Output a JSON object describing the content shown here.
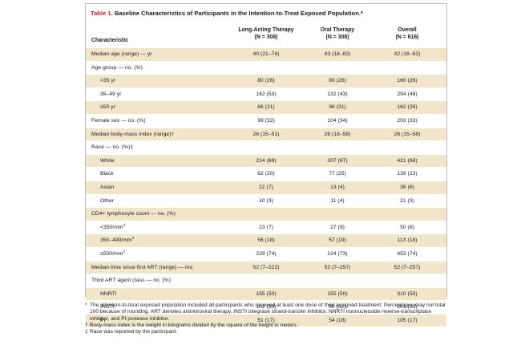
{
  "table": {
    "label": "Table 1.",
    "caption": " Baseline Characteristics of Participants in the Intention-to-Treat Exposed Population.*",
    "columns": {
      "characteristic": "Characteristic",
      "long_acting": {
        "name": "Long-Acting Therapy",
        "n": "(N = 308)"
      },
      "oral": {
        "name": "Oral Therapy",
        "n": "(N = 308)"
      },
      "overall": {
        "name": "Overall",
        "n": "(N = 616)"
      }
    },
    "rows": [
      {
        "label": "Median age (range) — yr",
        "sub": false,
        "long_acting": "40 (21–74)",
        "oral": "43 (18–82)",
        "overall": "42 (18–82)"
      },
      {
        "label": "Age group — no. (%)",
        "sub": false,
        "long_acting": "",
        "oral": "",
        "overall": ""
      },
      {
        "label": "<35 yr",
        "sub": true,
        "long_acting": "80 (26)",
        "oral": "80 (26)",
        "overall": "160 (26)"
      },
      {
        "label": "35–49 yr",
        "sub": true,
        "long_acting": "162 (53)",
        "oral": "132 (43)",
        "overall": "294 (48)"
      },
      {
        "label": "≥50 yr",
        "sub": true,
        "long_acting": "66 (21)",
        "oral": "96 (31)",
        "overall": "162 (26)"
      },
      {
        "label": "Female sex — no. (%)",
        "sub": false,
        "long_acting": "99 (32)",
        "oral": "104 (34)",
        "overall": "203 (33)"
      },
      {
        "label": "Median body-mass index (range)†",
        "sub": false,
        "long_acting": "26 (15–51)",
        "oral": "26 (18–58)",
        "overall": "26 (15–58)"
      },
      {
        "label": "Race — no. (%)‡",
        "sub": false,
        "long_acting": "",
        "oral": "",
        "overall": ""
      },
      {
        "label": "White",
        "sub": true,
        "long_acting": "214 (69)",
        "oral": "207 (67)",
        "overall": "421 (68)"
      },
      {
        "label": "Black",
        "sub": true,
        "long_acting": "62 (20)",
        "oral": "77 (25)",
        "overall": "139 (23)"
      },
      {
        "label": "Asian",
        "sub": true,
        "long_acting": "22 (7)",
        "oral": "13 (4)",
        "overall": "35 (6)"
      },
      {
        "label": "Other",
        "sub": true,
        "long_acting": "10 (3)",
        "oral": "11 (4)",
        "overall": "21 (3)"
      },
      {
        "label": "CD4+ lymphocyte count — no. (%)",
        "sub": false,
        "long_acting": "",
        "oral": "",
        "overall": ""
      },
      {
        "label": "<350/mm",
        "sup": "3",
        "sub": true,
        "long_acting": "23 (7)",
        "oral": "27 (9)",
        "overall": "50 (8)"
      },
      {
        "label": "350–499/mm",
        "sup": "3",
        "sub": true,
        "long_acting": "56 (18)",
        "oral": "57 (19)",
        "overall": "113 (18)"
      },
      {
        "label": "≥500/mm",
        "sup": "3",
        "sub": true,
        "long_acting": "229 (74)",
        "oral": "224 (73)",
        "overall": "453 (74)"
      },
      {
        "label": "Median time since first ART (range) — mo",
        "sub": false,
        "long_acting": "52 (7–222)",
        "oral": "52 (7–257)",
        "overall": "52 (7–257)"
      },
      {
        "label": "Third ART agent class — no. (%)",
        "sub": false,
        "long_acting": "",
        "oral": "",
        "overall": ""
      },
      {
        "label": "NNRTI",
        "sub": true,
        "long_acting": "155 (50)",
        "oral": "155 (50)",
        "overall": "310 (50)"
      },
      {
        "label": "INSTI",
        "sub": true,
        "long_acting": "102 (33)",
        "oral": "99 (32)",
        "overall": "201 (33)"
      },
      {
        "label": "PI",
        "sub": true,
        "long_acting": "51 (17)",
        "oral": "54 (18)",
        "overall": "105 (17)"
      }
    ]
  },
  "footnotes": [
    {
      "mark": "*",
      "text": "The intention-to-treat exposed population included all participants who received at least one dose of their assigned treatment. Percentages may not total 100 because of rounding. ART denotes antiretroviral therapy, INSTI integrase strand-transfer inhibitor, NNRTI nonnucleoside reverse-transcriptase inhibitor, and PI protease inhibitor."
    },
    {
      "mark": "†",
      "text": "Body-mass index is the weight in kilograms divided by the square of the height in meters."
    },
    {
      "mark": "‡",
      "text": "Race was reported by the participant."
    }
  ],
  "colors": {
    "title_label": "#b3262d",
    "row_shade": "#f1e6cb",
    "border": "#b9b9b9"
  }
}
